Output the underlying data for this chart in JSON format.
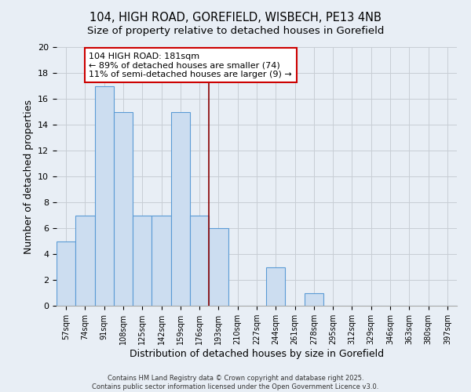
{
  "title": "104, HIGH ROAD, GOREFIELD, WISBECH, PE13 4NB",
  "subtitle": "Size of property relative to detached houses in Gorefield",
  "xlabel": "Distribution of detached houses by size in Gorefield",
  "ylabel": "Number of detached properties",
  "footer_line1": "Contains HM Land Registry data © Crown copyright and database right 2025.",
  "footer_line2": "Contains public sector information licensed under the Open Government Licence v3.0.",
  "bar_labels": [
    "57sqm",
    "74sqm",
    "91sqm",
    "108sqm",
    "125sqm",
    "142sqm",
    "159sqm",
    "176sqm",
    "193sqm",
    "210sqm",
    "227sqm",
    "244sqm",
    "261sqm",
    "278sqm",
    "295sqm",
    "312sqm",
    "329sqm",
    "346sqm",
    "363sqm",
    "380sqm",
    "397sqm"
  ],
  "bar_values": [
    5,
    7,
    17,
    15,
    7,
    7,
    15,
    7,
    6,
    0,
    0,
    3,
    0,
    1,
    0,
    0,
    0,
    0,
    0,
    0,
    0
  ],
  "bar_color": "#ccddf0",
  "bar_edge_color": "#5b9bd5",
  "ylim": [
    0,
    20
  ],
  "yticks": [
    0,
    2,
    4,
    6,
    8,
    10,
    12,
    14,
    16,
    18,
    20
  ],
  "grid_color": "#c8cdd4",
  "bg_color": "#e8eef5",
  "annotation_line1": "104 HIGH ROAD: 181sqm",
  "annotation_line2": "← 89% of detached houses are smaller (74)",
  "annotation_line3": "11% of semi-detached houses are larger (9) →",
  "annotation_box_color": "#cc0000",
  "annotation_fill": "#ffffff",
  "vline_x": 7.5,
  "vline_color": "#880000",
  "title_fontsize": 10.5,
  "annotation_fontsize": 8.0
}
